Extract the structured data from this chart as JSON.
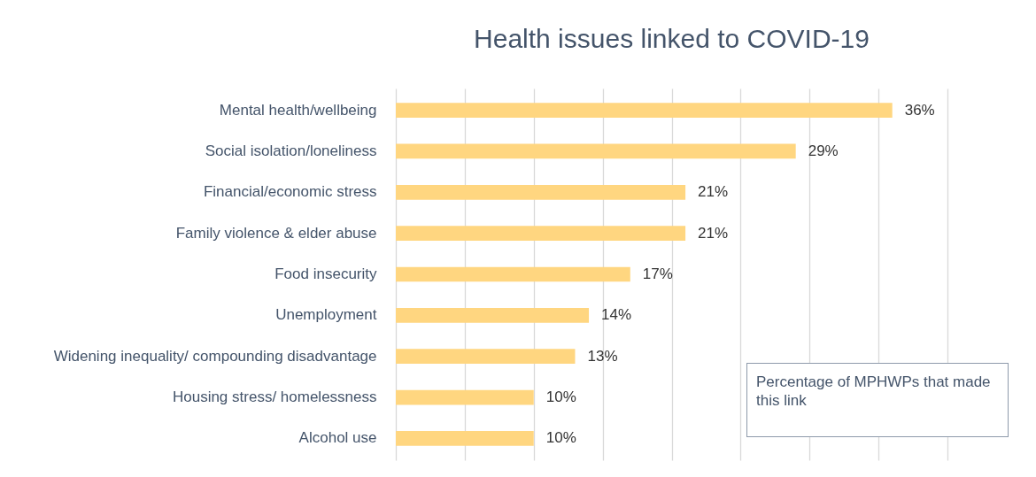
{
  "chart_data": {
    "type": "bar",
    "orientation": "horizontal",
    "title": "Health issues linked to COVID-19",
    "categories": [
      "Mental health/wellbeing",
      "Social isolation/loneliness",
      "Financial/economic stress",
      "Family violence & elder abuse",
      "Food insecurity",
      "Unemployment",
      "Widening inequality/ compounding disadvantage",
      "Housing stress/ homelessness",
      "Alcohol use"
    ],
    "values": [
      36,
      29,
      21,
      21,
      17,
      14,
      13,
      10,
      10
    ],
    "value_labels": [
      "36%",
      "29%",
      "21%",
      "21%",
      "17%",
      "14%",
      "13%",
      "10%",
      "10%"
    ],
    "color": "#ffd680",
    "xlim": [
      0,
      40
    ],
    "xticks": [
      {
        "value": 0,
        "label": null
      },
      {
        "value": 5,
        "label": null
      },
      {
        "value": 10,
        "label": null
      },
      {
        "value": 15,
        "label": null
      },
      {
        "value": 20,
        "label": null
      },
      {
        "value": 25,
        "label": null
      },
      {
        "value": 30,
        "label": null
      },
      {
        "value": 35,
        "label": null
      },
      {
        "value": 40,
        "label": null
      }
    ],
    "tick_labels": "y",
    "grid": "x",
    "annotations": [
      "Percentage of MPHWPs that made this link"
    ]
  }
}
